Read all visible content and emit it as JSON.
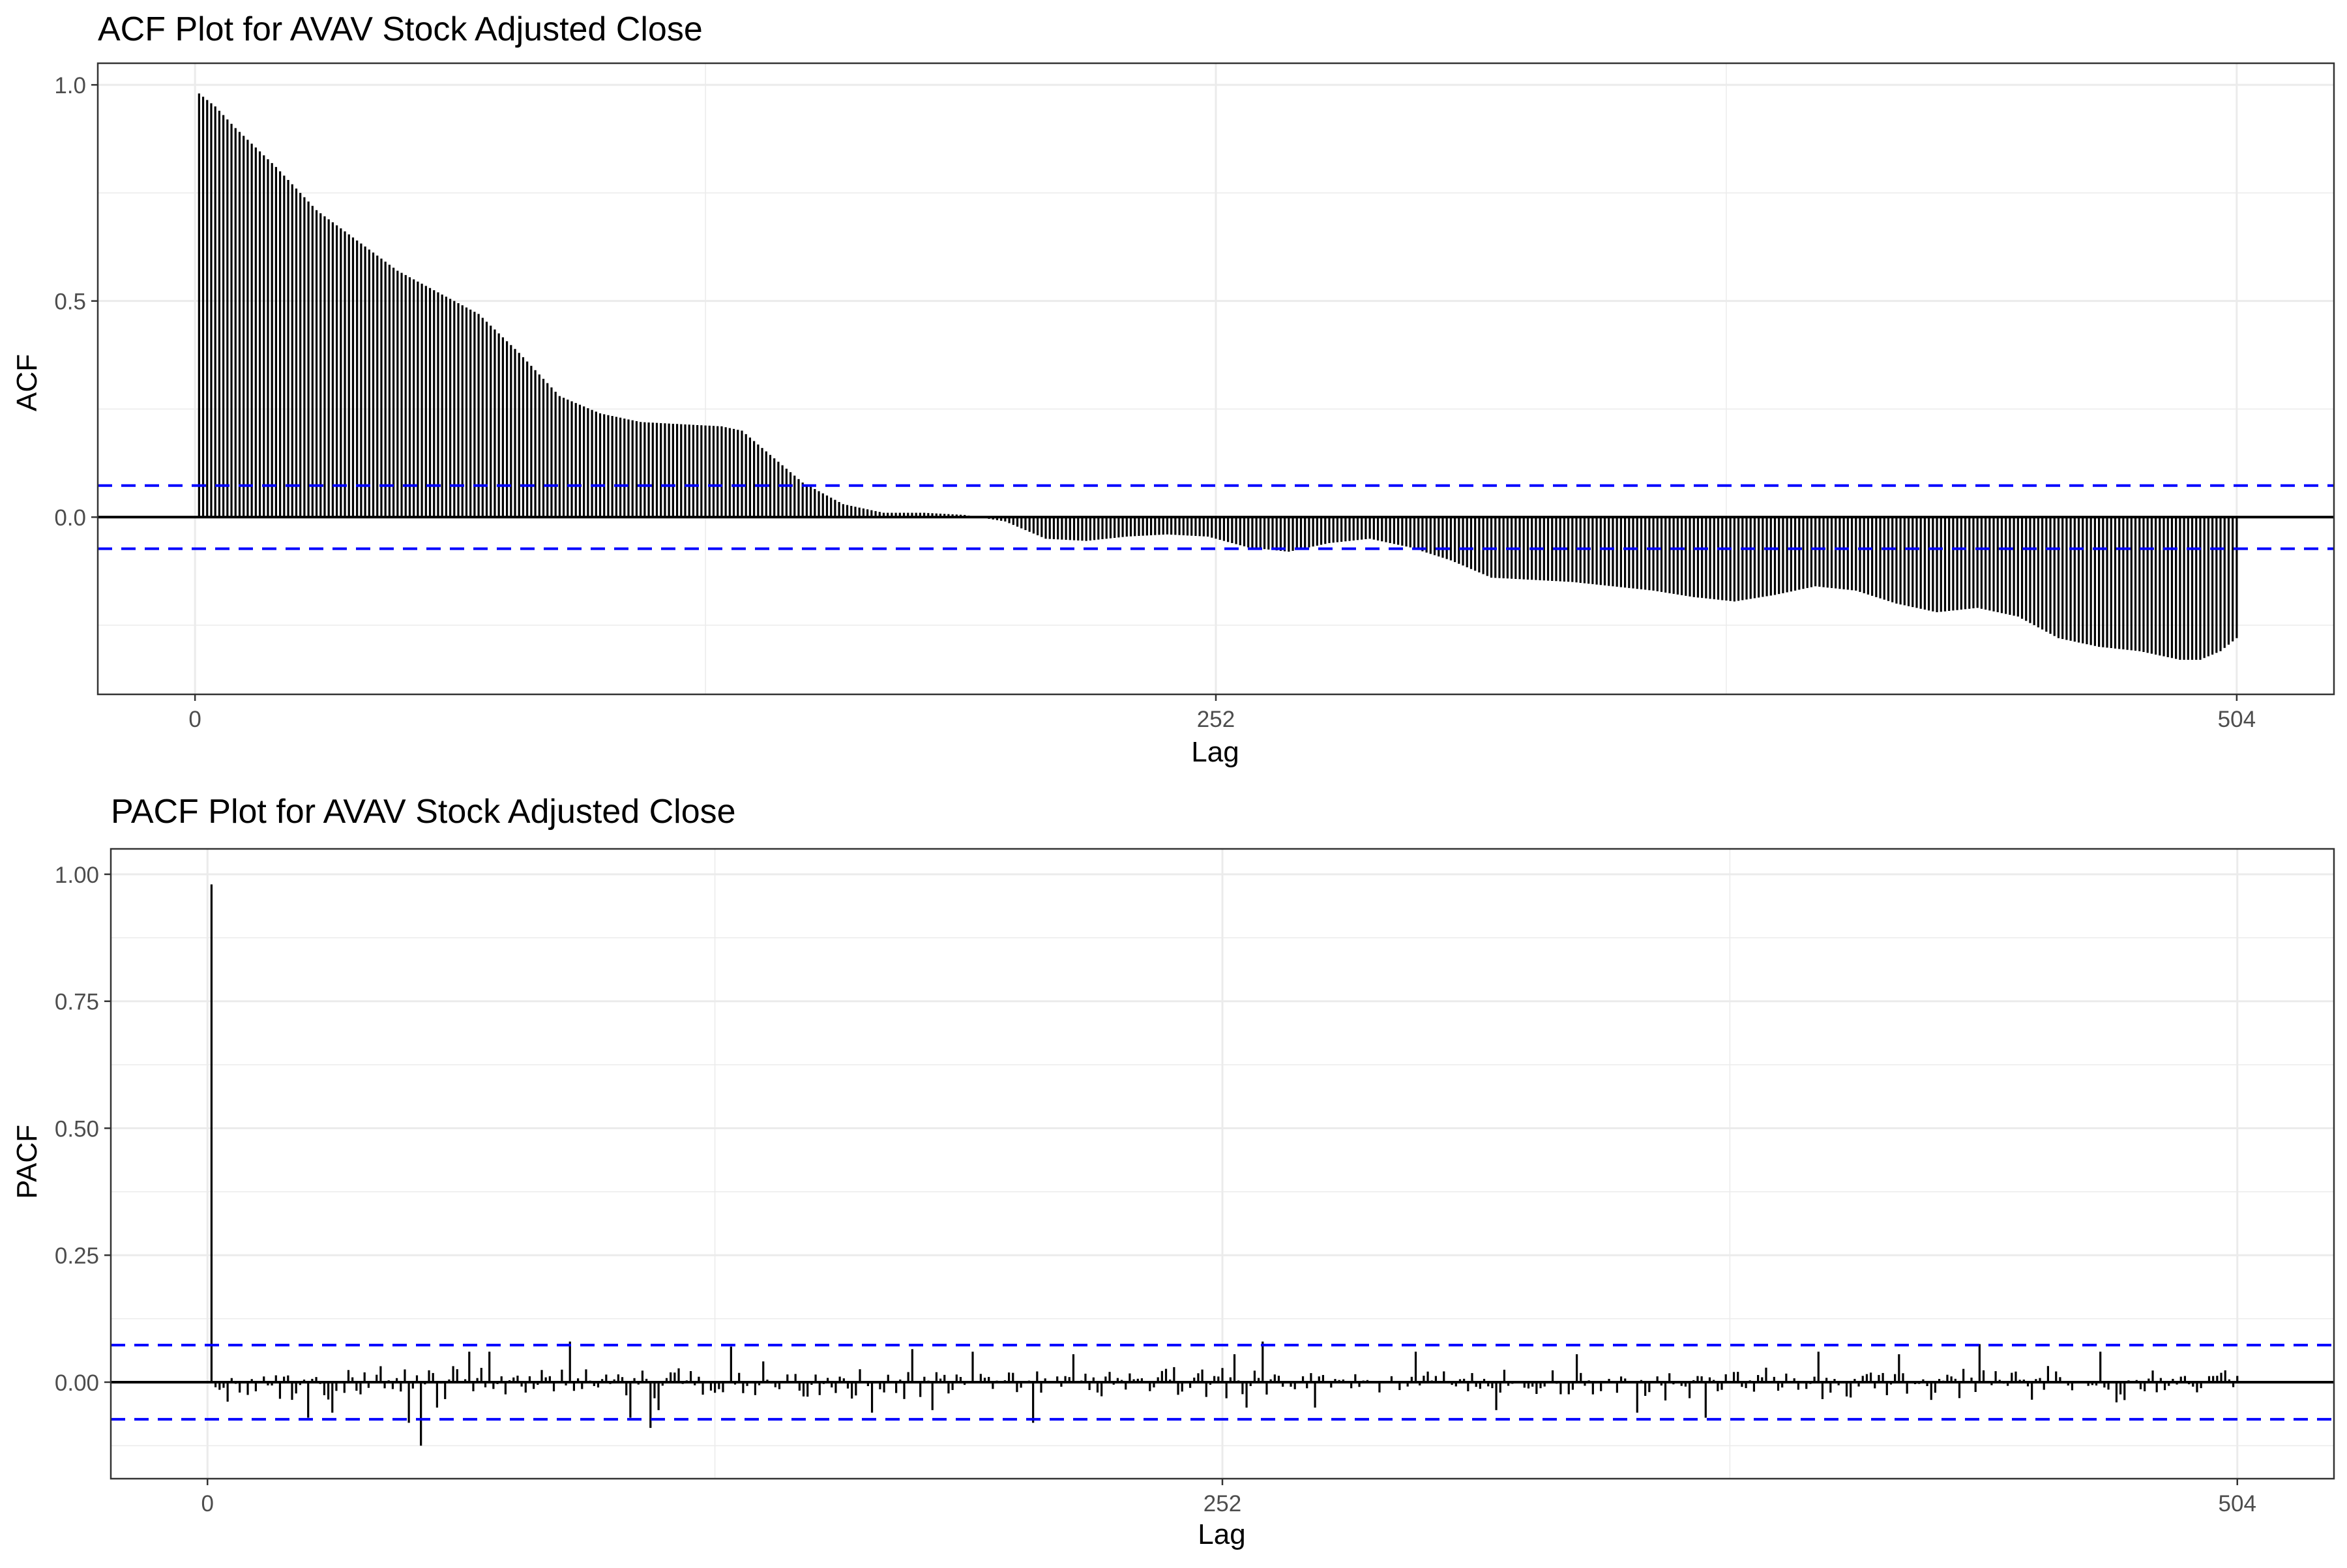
{
  "colors": {
    "bar": "#000000",
    "zero_line": "#000000",
    "ci_line": "#0000ff",
    "grid": "#ebebeb",
    "panel_border": "#333333",
    "tick_text": "#4d4d4d",
    "title_text": "#000000"
  },
  "chart_data": [
    {
      "type": "bar",
      "title": "ACF Plot for AVAV Stock Adjusted Close",
      "xlabel": "Lag",
      "ylabel": "ACF",
      "xlim": [
        -24,
        528
      ],
      "ylim": [
        -0.41,
        1.05
      ],
      "x_ticks": [
        0,
        252,
        504
      ],
      "x_tick_labels": [
        "0",
        "252",
        "504"
      ],
      "y_ticks": [
        0.0,
        0.5,
        1.0
      ],
      "y_tick_labels": [
        "0.0",
        "0.5",
        "1.0"
      ],
      "ci": 0.073,
      "grid": true,
      "legend": "none",
      "lag_range": [
        1,
        504
      ],
      "curve_knots": [
        [
          1,
          0.98
        ],
        [
          5,
          0.95
        ],
        [
          10,
          0.9
        ],
        [
          20,
          0.81
        ],
        [
          30,
          0.71
        ],
        [
          40,
          0.64
        ],
        [
          50,
          0.57
        ],
        [
          60,
          0.52
        ],
        [
          70,
          0.47
        ],
        [
          80,
          0.38
        ],
        [
          90,
          0.28
        ],
        [
          100,
          0.24
        ],
        [
          110,
          0.22
        ],
        [
          120,
          0.215
        ],
        [
          130,
          0.21
        ],
        [
          135,
          0.2
        ],
        [
          140,
          0.16
        ],
        [
          150,
          0.08
        ],
        [
          160,
          0.03
        ],
        [
          170,
          0.01
        ],
        [
          180,
          0.01
        ],
        [
          190,
          0.005
        ],
        [
          200,
          -0.01
        ],
        [
          210,
          -0.05
        ],
        [
          220,
          -0.055
        ],
        [
          230,
          -0.045
        ],
        [
          240,
          -0.04
        ],
        [
          250,
          -0.045
        ],
        [
          260,
          -0.07
        ],
        [
          270,
          -0.08
        ],
        [
          280,
          -0.06
        ],
        [
          290,
          -0.05
        ],
        [
          300,
          -0.07
        ],
        [
          310,
          -0.1
        ],
        [
          320,
          -0.14
        ],
        [
          330,
          -0.145
        ],
        [
          340,
          -0.15
        ],
        [
          350,
          -0.16
        ],
        [
          360,
          -0.17
        ],
        [
          370,
          -0.185
        ],
        [
          380,
          -0.195
        ],
        [
          390,
          -0.18
        ],
        [
          400,
          -0.16
        ],
        [
          410,
          -0.17
        ],
        [
          420,
          -0.2
        ],
        [
          430,
          -0.22
        ],
        [
          440,
          -0.21
        ],
        [
          450,
          -0.23
        ],
        [
          460,
          -0.28
        ],
        [
          470,
          -0.3
        ],
        [
          480,
          -0.31
        ],
        [
          490,
          -0.33
        ],
        [
          495,
          -0.33
        ],
        [
          500,
          -0.31
        ],
        [
          504,
          -0.28
        ]
      ]
    },
    {
      "type": "bar",
      "title": "PACF Plot for AVAV Stock Adjusted Close",
      "xlabel": "Lag",
      "ylabel": "PACF",
      "xlim": [
        -24,
        528
      ],
      "ylim": [
        -0.19,
        1.05
      ],
      "x_ticks": [
        0,
        252,
        504
      ],
      "x_tick_labels": [
        "0",
        "252",
        "504"
      ],
      "y_ticks": [
        0.0,
        0.25,
        0.5,
        0.75,
        1.0
      ],
      "y_tick_labels": [
        "0.00",
        "0.25",
        "0.50",
        "0.75",
        "1.00"
      ],
      "ci": 0.073,
      "grid": true,
      "legend": "none",
      "lag_range": [
        1,
        504
      ],
      "noise_scale": 0.02,
      "spikes": [
        [
          1,
          0.98
        ],
        [
          2,
          -0.01
        ],
        [
          3,
          -0.015
        ],
        [
          25,
          -0.07
        ],
        [
          31,
          -0.06
        ],
        [
          50,
          -0.08
        ],
        [
          53,
          -0.125
        ],
        [
          57,
          -0.05
        ],
        [
          65,
          0.06
        ],
        [
          70,
          0.06
        ],
        [
          90,
          0.08
        ],
        [
          105,
          -0.07
        ],
        [
          110,
          -0.09
        ],
        [
          112,
          -0.055
        ],
        [
          130,
          0.07
        ],
        [
          165,
          -0.06
        ],
        [
          175,
          0.065
        ],
        [
          180,
          -0.055
        ],
        [
          190,
          0.06
        ],
        [
          205,
          -0.08
        ],
        [
          215,
          0.055
        ],
        [
          255,
          0.055
        ],
        [
          258,
          -0.05
        ],
        [
          262,
          0.08
        ],
        [
          275,
          -0.05
        ],
        [
          300,
          0.06
        ],
        [
          320,
          -0.055
        ],
        [
          340,
          0.055
        ],
        [
          355,
          -0.06
        ],
        [
          372,
          -0.07
        ],
        [
          400,
          0.06
        ],
        [
          420,
          0.055
        ],
        [
          440,
          0.075
        ],
        [
          470,
          0.06
        ]
      ]
    }
  ]
}
